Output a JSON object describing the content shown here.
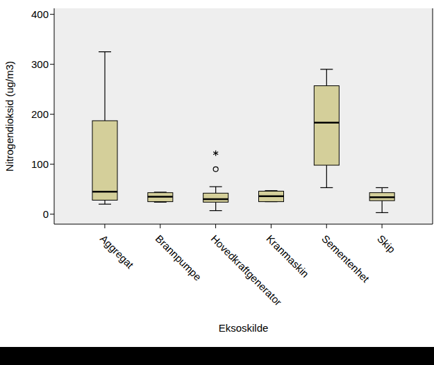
{
  "chart_data": {
    "type": "boxplot",
    "x_label": "Eksoskilde",
    "y_label": "Nitrogendioksid (ug/m3)",
    "categories": [
      "Aggregat",
      "Brannpumpe",
      "Hovedkraftgenerator",
      "Kranmaskin",
      "Sementenhet",
      "Skip"
    ],
    "boxes": [
      {
        "min": 20,
        "q1": 28,
        "median": 45,
        "q3": 187,
        "max": 325,
        "outliers": []
      },
      {
        "min": 24,
        "q1": 25,
        "median": 35,
        "q3": 43,
        "max": 44,
        "outliers": []
      },
      {
        "min": 7,
        "q1": 24,
        "median": 30,
        "q3": 42,
        "max": 55,
        "outliers": [
          {
            "value": 90,
            "marker": "circle"
          },
          {
            "value": 122,
            "marker": "star"
          }
        ]
      },
      {
        "min": 25,
        "q1": 25,
        "median": 36,
        "q3": 46,
        "max": 47,
        "outliers": []
      },
      {
        "min": 53,
        "q1": 98,
        "median": 183,
        "q3": 257,
        "max": 290,
        "outliers": []
      },
      {
        "min": 3,
        "q1": 27,
        "median": 34,
        "q3": 43,
        "max": 53,
        "outliers": []
      }
    ],
    "color": "#d4cf9a",
    "ylim": [
      -20,
      412
    ],
    "yticks": [
      0,
      100,
      200,
      300,
      400
    ],
    "grid": false
  }
}
